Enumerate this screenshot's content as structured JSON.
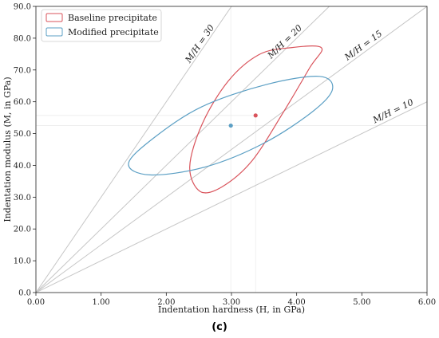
{
  "chart_data": {
    "type": "scatter",
    "xlabel": "Indentation hardness (H, in GPa)",
    "ylabel": "Indentation modulus (M, in GPa)",
    "xlim": [
      0,
      6
    ],
    "ylim": [
      0,
      90
    ],
    "xticks": [
      "0.00",
      "1.00",
      "2.00",
      "3.00",
      "4.00",
      "5.00",
      "6.00"
    ],
    "yticks": [
      "0.0",
      "10.0",
      "20.0",
      "30.0",
      "40.0",
      "50.0",
      "60.0",
      "70.0",
      "80.0",
      "90.0"
    ],
    "xtick_values": [
      0,
      1,
      2,
      3,
      4,
      5,
      6
    ],
    "ytick_values": [
      0,
      10,
      20,
      30,
      40,
      50,
      60,
      70,
      80,
      90
    ],
    "legend_position": "top-left",
    "ratio_lines": [
      {
        "ratio": 30,
        "label": "M/H = 30"
      },
      {
        "ratio": 20,
        "label": "M/H = 20"
      },
      {
        "ratio": 15,
        "label": "M/H = 15"
      },
      {
        "ratio": 10,
        "label": "M/H = 10"
      }
    ],
    "series": [
      {
        "name": "Baseline precipitate",
        "color": "#d9535b",
        "mean": {
          "x": 3.37,
          "y": 55.7
        },
        "ellipse_points": [
          [
            3.9,
            77.0
          ],
          [
            3.42,
            74.8
          ],
          [
            2.95,
            66.5
          ],
          [
            2.55,
            53.0
          ],
          [
            2.36,
            39.5
          ],
          [
            2.52,
            31.8
          ],
          [
            2.85,
            33.2
          ],
          [
            3.31,
            41.3
          ],
          [
            3.79,
            56.5
          ],
          [
            4.2,
            70.7
          ],
          [
            4.38,
            77.0
          ]
        ]
      },
      {
        "name": "Modified precipitate",
        "color": "#5b9fc4",
        "mean": {
          "x": 2.99,
          "y": 52.5
        },
        "ellipse_points": [
          [
            4.35,
            68.0
          ],
          [
            3.55,
            65.5
          ],
          [
            2.55,
            58.5
          ],
          [
            1.8,
            48.5
          ],
          [
            1.42,
            40.5
          ],
          [
            1.75,
            37.0
          ],
          [
            2.6,
            39.5
          ],
          [
            3.5,
            47.0
          ],
          [
            4.25,
            57.0
          ],
          [
            4.55,
            64.0
          ]
        ]
      }
    ]
  },
  "panel_label": "(c)"
}
